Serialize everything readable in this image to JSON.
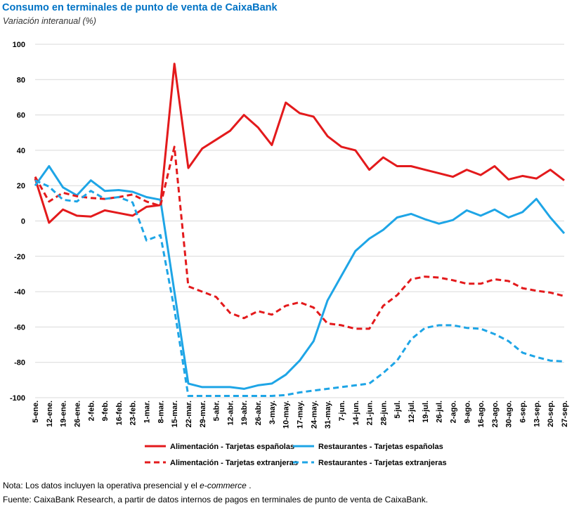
{
  "header": {
    "title": "Consumo en terminales de punto de venta de CaixaBank",
    "subtitle": "Variación interanual (%)"
  },
  "notes": {
    "nota_prefix": "Nota: Los datos incluyen la operativa presencial y el ",
    "nota_italic": "e-commerce",
    "nota_suffix": " .",
    "fuente": "Fuente: CaixaBank Research, a partir de datos internos de pagos en terminales de punto de venta de CaixaBank."
  },
  "chart_data": {
    "type": "line",
    "categories": [
      "5-ene.",
      "12-ene.",
      "19-ene.",
      "26-ene.",
      "2-feb.",
      "9-feb.",
      "16-feb.",
      "23-feb.",
      "1-mar.",
      "8-mar.",
      "15-mar.",
      "22-mar.",
      "29-mar.",
      "5-abr.",
      "12-abr.",
      "19-abr.",
      "26-abr.",
      "3-may.",
      "10-may.",
      "17-may.",
      "24-may.",
      "31-may.",
      "7-jun.",
      "14-jun.",
      "21-jun.",
      "28-jun.",
      "5-jul.",
      "12-jul.",
      "19-jul.",
      "26-jul.",
      "2-ago.",
      "9-ago.",
      "16-ago.",
      "23-ago.",
      "30-ago.",
      "6-sep.",
      "13-sep.",
      "20-sep.",
      "27-sep."
    ],
    "ylim": [
      -100,
      100
    ],
    "yticks": [
      "100",
      "80",
      "60",
      "40",
      "20",
      "0",
      "-20",
      "-40",
      "-60",
      "-80",
      "-100"
    ],
    "ytick_values": [
      100,
      80,
      60,
      40,
      20,
      0,
      -20,
      -40,
      -60,
      -80,
      -100
    ],
    "series": [
      {
        "name": "Alimentación - Tarjetas españolas",
        "color": "#e31a1c",
        "dashed": false,
        "values": [
          24,
          -1,
          6.5,
          3,
          2.5,
          6,
          4.5,
          3,
          8,
          9,
          89,
          30,
          41,
          46,
          51,
          60,
          53,
          43,
          67,
          61,
          59,
          48,
          42,
          40,
          29,
          36,
          31,
          31,
          29,
          27,
          25,
          29,
          26,
          31,
          23.5,
          25.5,
          24,
          29,
          23
        ]
      },
      {
        "name": "Restaurantes - Tarjetas españolas",
        "color": "#1ea5e6",
        "dashed": false,
        "values": [
          20,
          31,
          19,
          14.5,
          23,
          17,
          17.5,
          16.5,
          13.5,
          12,
          -40,
          -92,
          -94,
          -94,
          -94,
          -95,
          -93,
          -92,
          -87,
          -79,
          -68,
          -45,
          -31,
          -17,
          -10,
          -5,
          2,
          4,
          1,
          -1.5,
          0.5,
          6,
          3,
          6.5,
          2,
          5,
          12.5,
          2,
          -7
        ]
      },
      {
        "name": "Alimentación - Tarjetas extranjeras",
        "color": "#e31a1c",
        "dashed": true,
        "values": [
          25,
          11,
          16,
          14,
          13,
          12.5,
          13.5,
          15,
          11,
          8.5,
          42,
          -37,
          -40,
          -43,
          -52,
          -55,
          -51,
          -53,
          -48,
          -46,
          -49,
          -58,
          -59,
          -61,
          -61,
          -48,
          -42,
          -33,
          -31.5,
          -32,
          -33.5,
          -35.5,
          -35.5,
          -33,
          -34,
          -38,
          -39.5,
          -40.5,
          -42.5
        ]
      },
      {
        "name": "Restaurantes - Tarjetas extranjeras",
        "color": "#1ea5e6",
        "dashed": true,
        "values": [
          23,
          19.5,
          12,
          11,
          17,
          12.5,
          13.5,
          10.5,
          -11,
          -8,
          -50,
          -99,
          -99,
          -99,
          -99,
          -99,
          -99,
          -99,
          -98.5,
          -97,
          -96,
          -95,
          -94,
          -93,
          -92,
          -86,
          -79,
          -67,
          -60.5,
          -59,
          -59,
          -60.5,
          -61,
          -64,
          -68,
          -74.5,
          -77,
          -79,
          -79.5
        ]
      }
    ]
  }
}
